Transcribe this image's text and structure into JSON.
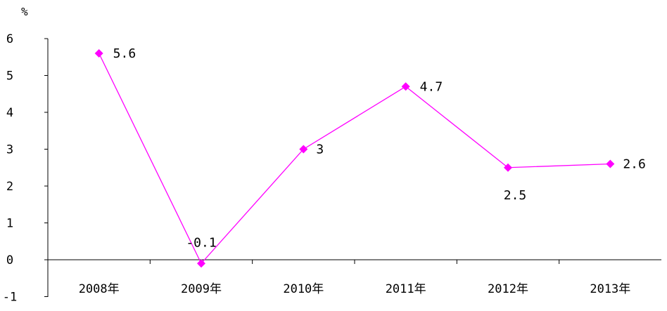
{
  "chart_data": {
    "type": "line",
    "title": "",
    "unit": "%",
    "categories": [
      "2008年",
      "2009年",
      "2010年",
      "2011年",
      "2012年",
      "2013年"
    ],
    "series": [
      {
        "values": [
          5.6,
          -0.1,
          3,
          4.7,
          2.5,
          2.6
        ],
        "labels": [
          "5.6",
          "-0.1",
          "3",
          "4.7",
          "2.5",
          "2.6"
        ],
        "color": "#ff00ff"
      }
    ],
    "ylim": [
      -1,
      6
    ],
    "yticks": [
      "-1",
      "0",
      "1",
      "2",
      "3",
      "4",
      "5",
      "6"
    ],
    "xlabel": "",
    "ylabel": "",
    "grid": false,
    "legend": "none",
    "marker": "diamond"
  }
}
